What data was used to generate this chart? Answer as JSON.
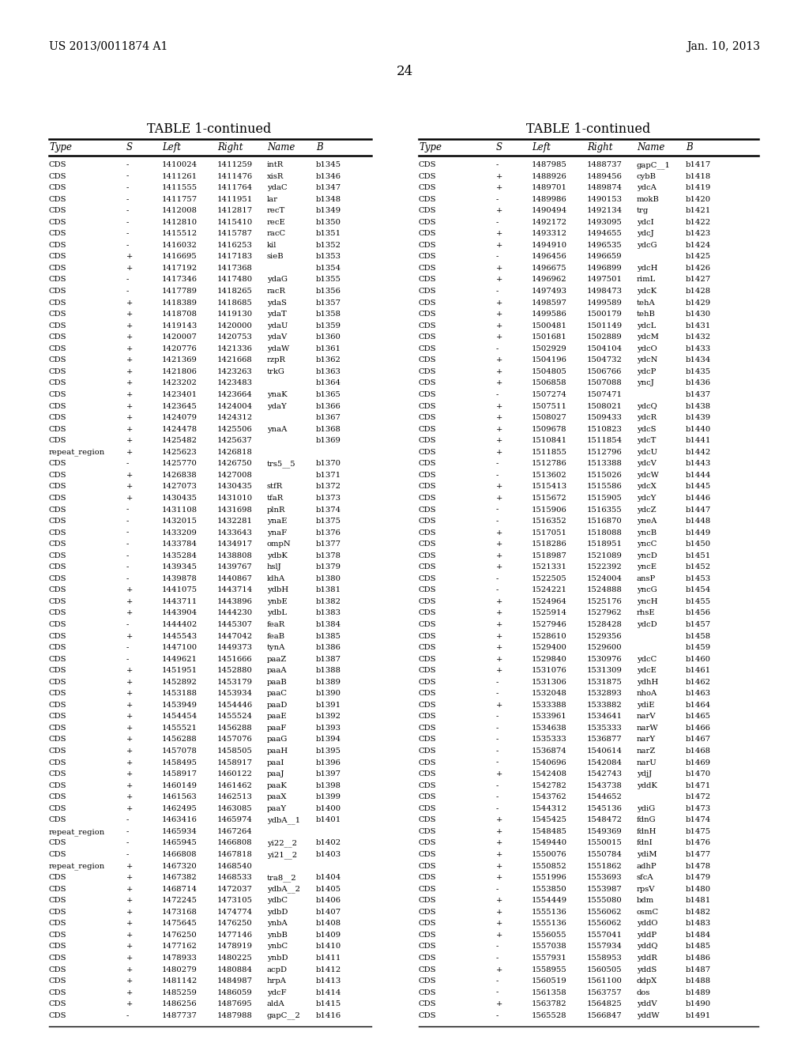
{
  "header_left": "US 2013/0011874 A1",
  "header_right": "Jan. 10, 2013",
  "page_number": "24",
  "table_title": "TABLE 1-continued",
  "columns": [
    "Type",
    "S",
    "Left",
    "Right",
    "Name",
    "B"
  ],
  "left_table": [
    [
      "CDS",
      "-",
      "1410024",
      "1411259",
      "intR",
      "b1345"
    ],
    [
      "CDS",
      "-",
      "1411261",
      "1411476",
      "xisR",
      "b1346"
    ],
    [
      "CDS",
      "-",
      "1411555",
      "1411764",
      "ydaC",
      "b1347"
    ],
    [
      "CDS",
      "-",
      "1411757",
      "1411951",
      "lar",
      "b1348"
    ],
    [
      "CDS",
      "-",
      "1412008",
      "1412817",
      "recT",
      "b1349"
    ],
    [
      "CDS",
      "-",
      "1412810",
      "1415410",
      "recE",
      "b1350"
    ],
    [
      "CDS",
      "-",
      "1415512",
      "1415787",
      "racC",
      "b1351"
    ],
    [
      "CDS",
      "-",
      "1416032",
      "1416253",
      "kil",
      "b1352"
    ],
    [
      "CDS",
      "+",
      "1416695",
      "1417183",
      "sieB",
      "b1353"
    ],
    [
      "CDS",
      "+",
      "1417192",
      "1417368",
      "",
      "b1354"
    ],
    [
      "CDS",
      "-",
      "1417346",
      "1417480",
      "ydaG",
      "b1355"
    ],
    [
      "CDS",
      "-",
      "1417789",
      "1418265",
      "racR",
      "b1356"
    ],
    [
      "CDS",
      "+",
      "1418389",
      "1418685",
      "ydaS",
      "b1357"
    ],
    [
      "CDS",
      "+",
      "1418708",
      "1419130",
      "ydaT",
      "b1358"
    ],
    [
      "CDS",
      "+",
      "1419143",
      "1420000",
      "ydaU",
      "b1359"
    ],
    [
      "CDS",
      "+",
      "1420007",
      "1420753",
      "ydaV",
      "b1360"
    ],
    [
      "CDS",
      "+",
      "1420776",
      "1421336",
      "ydaW",
      "b1361"
    ],
    [
      "CDS",
      "+",
      "1421369",
      "1421668",
      "rzpR",
      "b1362"
    ],
    [
      "CDS",
      "+",
      "1421806",
      "1423263",
      "trkG",
      "b1363"
    ],
    [
      "CDS",
      "+",
      "1423202",
      "1423483",
      "",
      "b1364"
    ],
    [
      "CDS",
      "+",
      "1423401",
      "1423664",
      "ynaK",
      "b1365"
    ],
    [
      "CDS",
      "+",
      "1423645",
      "1424004",
      "ydaY",
      "b1366"
    ],
    [
      "CDS",
      "+",
      "1424079",
      "1424312",
      "",
      "b1367"
    ],
    [
      "CDS",
      "+",
      "1424478",
      "1425506",
      "ynaA",
      "b1368"
    ],
    [
      "CDS",
      "+",
      "1425482",
      "1425637",
      "",
      "b1369"
    ],
    [
      "repeat_region",
      "+",
      "1425623",
      "1426818",
      "",
      ""
    ],
    [
      "CDS",
      "-",
      "1425770",
      "1426750",
      "trs5__5",
      "b1370"
    ],
    [
      "CDS",
      "+",
      "1426838",
      "1427008",
      "",
      "b1371"
    ],
    [
      "CDS",
      "+",
      "1427073",
      "1430435",
      "stfR",
      "b1372"
    ],
    [
      "CDS",
      "+",
      "1430435",
      "1431010",
      "tfaR",
      "b1373"
    ],
    [
      "CDS",
      "-",
      "1431108",
      "1431698",
      "plnR",
      "b1374"
    ],
    [
      "CDS",
      "-",
      "1432015",
      "1432281",
      "ynaE",
      "b1375"
    ],
    [
      "CDS",
      "-",
      "1433209",
      "1433643",
      "ynaF",
      "b1376"
    ],
    [
      "CDS",
      "-",
      "1433784",
      "1434917",
      "ompN",
      "b1377"
    ],
    [
      "CDS",
      "-",
      "1435284",
      "1438808",
      "ydbK",
      "b1378"
    ],
    [
      "CDS",
      "-",
      "1439345",
      "1439767",
      "hslJ",
      "b1379"
    ],
    [
      "CDS",
      "-",
      "1439878",
      "1440867",
      "ldhA",
      "b1380"
    ],
    [
      "CDS",
      "+",
      "1441075",
      "1443714",
      "ydbH",
      "b1381"
    ],
    [
      "CDS",
      "+",
      "1443711",
      "1443896",
      "ynbE",
      "b1382"
    ],
    [
      "CDS",
      "+",
      "1443904",
      "1444230",
      "ydbL",
      "b1383"
    ],
    [
      "CDS",
      "-",
      "1444402",
      "1445307",
      "feaR",
      "b1384"
    ],
    [
      "CDS",
      "+",
      "1445543",
      "1447042",
      "feaB",
      "b1385"
    ],
    [
      "CDS",
      "-",
      "1447100",
      "1449373",
      "tynA",
      "b1386"
    ],
    [
      "CDS",
      "-",
      "1449621",
      "1451666",
      "paaZ",
      "b1387"
    ],
    [
      "CDS",
      "+",
      "1451951",
      "1452880",
      "paaA",
      "b1388"
    ],
    [
      "CDS",
      "+",
      "1452892",
      "1453179",
      "paaB",
      "b1389"
    ],
    [
      "CDS",
      "+",
      "1453188",
      "1453934",
      "paaC",
      "b1390"
    ],
    [
      "CDS",
      "+",
      "1453949",
      "1454446",
      "paaD",
      "b1391"
    ],
    [
      "CDS",
      "+",
      "1454454",
      "1455524",
      "paaE",
      "b1392"
    ],
    [
      "CDS",
      "+",
      "1455521",
      "1456288",
      "paaF",
      "b1393"
    ],
    [
      "CDS",
      "+",
      "1456288",
      "1457076",
      "paaG",
      "b1394"
    ],
    [
      "CDS",
      "+",
      "1457078",
      "1458505",
      "paaH",
      "b1395"
    ],
    [
      "CDS",
      "+",
      "1458495",
      "1458917",
      "paaI",
      "b1396"
    ],
    [
      "CDS",
      "+",
      "1458917",
      "1460122",
      "paaJ",
      "b1397"
    ],
    [
      "CDS",
      "+",
      "1460149",
      "1461462",
      "paaK",
      "b1398"
    ],
    [
      "CDS",
      "+",
      "1461563",
      "1462513",
      "paaX",
      "b1399"
    ],
    [
      "CDS",
      "+",
      "1462495",
      "1463085",
      "paaY",
      "b1400"
    ],
    [
      "CDS",
      "-",
      "1463416",
      "1465974",
      "ydbA__1",
      "b1401"
    ],
    [
      "repeat_region",
      "-",
      "1465934",
      "1467264",
      "",
      ""
    ],
    [
      "CDS",
      "-",
      "1465945",
      "1466808",
      "yi22__2",
      "b1402"
    ],
    [
      "CDS",
      "-",
      "1466808",
      "1467818",
      "yi21__2",
      "b1403"
    ],
    [
      "repeat_region",
      "+",
      "1467320",
      "1468540",
      "",
      ""
    ],
    [
      "CDS",
      "+",
      "1467382",
      "1468533",
      "tra8__2",
      "b1404"
    ],
    [
      "CDS",
      "+",
      "1468714",
      "1472037",
      "ydbA__2",
      "b1405"
    ],
    [
      "CDS",
      "+",
      "1472245",
      "1473105",
      "ydbC",
      "b1406"
    ],
    [
      "CDS",
      "+",
      "1473168",
      "1474774",
      "ydbD",
      "b1407"
    ],
    [
      "CDS",
      "+",
      "1475645",
      "1476250",
      "ynbA",
      "b1408"
    ],
    [
      "CDS",
      "+",
      "1476250",
      "1477146",
      "ynbB",
      "b1409"
    ],
    [
      "CDS",
      "+",
      "1477162",
      "1478919",
      "ynbC",
      "b1410"
    ],
    [
      "CDS",
      "+",
      "1478933",
      "1480225",
      "ynbD",
      "b1411"
    ],
    [
      "CDS",
      "+",
      "1480279",
      "1480884",
      "acpD",
      "b1412"
    ],
    [
      "CDS",
      "+",
      "1481142",
      "1484987",
      "hrpA",
      "b1413"
    ],
    [
      "CDS",
      "+",
      "1485259",
      "1486059",
      "ydcF",
      "b1414"
    ],
    [
      "CDS",
      "+",
      "1486256",
      "1487695",
      "aldA",
      "b1415"
    ],
    [
      "CDS",
      "-",
      "1487737",
      "1487988",
      "gapC__2",
      "b1416"
    ]
  ],
  "right_table": [
    [
      "CDS",
      "-",
      "1487985",
      "1488737",
      "gapC__1",
      "b1417"
    ],
    [
      "CDS",
      "+",
      "1488926",
      "1489456",
      "cybB",
      "b1418"
    ],
    [
      "CDS",
      "+",
      "1489701",
      "1489874",
      "ydcA",
      "b1419"
    ],
    [
      "CDS",
      "-",
      "1489986",
      "1490153",
      "mokB",
      "b1420"
    ],
    [
      "CDS",
      "+",
      "1490494",
      "1492134",
      "trg",
      "b1421"
    ],
    [
      "CDS",
      "-",
      "1492172",
      "1493095",
      "ydcI",
      "b1422"
    ],
    [
      "CDS",
      "+",
      "1493312",
      "1494655",
      "ydcJ",
      "b1423"
    ],
    [
      "CDS",
      "+",
      "1494910",
      "1496535",
      "ydcG",
      "b1424"
    ],
    [
      "CDS",
      "-",
      "1496456",
      "1496659",
      "",
      "b1425"
    ],
    [
      "CDS",
      "+",
      "1496675",
      "1496899",
      "ydcH",
      "b1426"
    ],
    [
      "CDS",
      "+",
      "1496962",
      "1497501",
      "rimL",
      "b1427"
    ],
    [
      "CDS",
      "-",
      "1497493",
      "1498473",
      "ydcK",
      "b1428"
    ],
    [
      "CDS",
      "+",
      "1498597",
      "1499589",
      "tehA",
      "b1429"
    ],
    [
      "CDS",
      "+",
      "1499586",
      "1500179",
      "tehB",
      "b1430"
    ],
    [
      "CDS",
      "+",
      "1500481",
      "1501149",
      "ydcL",
      "b1431"
    ],
    [
      "CDS",
      "+",
      "1501681",
      "1502889",
      "ydcM",
      "b1432"
    ],
    [
      "CDS",
      "-",
      "1502929",
      "1504104",
      "ydcO",
      "b1433"
    ],
    [
      "CDS",
      "+",
      "1504196",
      "1504732",
      "ydcN",
      "b1434"
    ],
    [
      "CDS",
      "+",
      "1504805",
      "1506766",
      "ydcP",
      "b1435"
    ],
    [
      "CDS",
      "+",
      "1506858",
      "1507088",
      "yncJ",
      "b1436"
    ],
    [
      "CDS",
      "-",
      "1507274",
      "1507471",
      "",
      "b1437"
    ],
    [
      "CDS",
      "+",
      "1507511",
      "1508021",
      "ydcQ",
      "b1438"
    ],
    [
      "CDS",
      "+",
      "1508027",
      "1509433",
      "ydcR",
      "b1439"
    ],
    [
      "CDS",
      "+",
      "1509678",
      "1510823",
      "ydcS",
      "b1440"
    ],
    [
      "CDS",
      "+",
      "1510841",
      "1511854",
      "ydcT",
      "b1441"
    ],
    [
      "CDS",
      "+",
      "1511855",
      "1512796",
      "ydcU",
      "b1442"
    ],
    [
      "CDS",
      "-",
      "1512786",
      "1513388",
      "ydcV",
      "b1443"
    ],
    [
      "CDS",
      "-",
      "1513602",
      "1515026",
      "ydcW",
      "b1444"
    ],
    [
      "CDS",
      "+",
      "1515413",
      "1515586",
      "ydcX",
      "b1445"
    ],
    [
      "CDS",
      "+",
      "1515672",
      "1515905",
      "ydcY",
      "b1446"
    ],
    [
      "CDS",
      "-",
      "1515906",
      "1516355",
      "ydcZ",
      "b1447"
    ],
    [
      "CDS",
      "-",
      "1516352",
      "1516870",
      "yneA",
      "b1448"
    ],
    [
      "CDS",
      "+",
      "1517051",
      "1518088",
      "yncB",
      "b1449"
    ],
    [
      "CDS",
      "+",
      "1518286",
      "1518951",
      "yncC",
      "b1450"
    ],
    [
      "CDS",
      "+",
      "1518987",
      "1521089",
      "yncD",
      "b1451"
    ],
    [
      "CDS",
      "+",
      "1521331",
      "1522392",
      "yncE",
      "b1452"
    ],
    [
      "CDS",
      "-",
      "1522505",
      "1524004",
      "ansP",
      "b1453"
    ],
    [
      "CDS",
      "-",
      "1524221",
      "1524888",
      "yncG",
      "b1454"
    ],
    [
      "CDS",
      "+",
      "1524964",
      "1525176",
      "yncH",
      "b1455"
    ],
    [
      "CDS",
      "+",
      "1525914",
      "1527962",
      "rhsE",
      "b1456"
    ],
    [
      "CDS",
      "+",
      "1527946",
      "1528428",
      "ydcD",
      "b1457"
    ],
    [
      "CDS",
      "+",
      "1528610",
      "1529356",
      "",
      "b1458"
    ],
    [
      "CDS",
      "+",
      "1529400",
      "1529600",
      "",
      "b1459"
    ],
    [
      "CDS",
      "+",
      "1529840",
      "1530976",
      "ydcC",
      "b1460"
    ],
    [
      "CDS",
      "+",
      "1531076",
      "1531309",
      "ydcE",
      "b1461"
    ],
    [
      "CDS",
      "-",
      "1531306",
      "1531875",
      "ydhH",
      "b1462"
    ],
    [
      "CDS",
      "-",
      "1532048",
      "1532893",
      "nhoA",
      "b1463"
    ],
    [
      "CDS",
      "+",
      "1533388",
      "1533882",
      "ydiE",
      "b1464"
    ],
    [
      "CDS",
      "-",
      "1533961",
      "1534641",
      "narV",
      "b1465"
    ],
    [
      "CDS",
      "-",
      "1534638",
      "1535333",
      "narW",
      "b1466"
    ],
    [
      "CDS",
      "-",
      "1535333",
      "1536877",
      "narY",
      "b1467"
    ],
    [
      "CDS",
      "-",
      "1536874",
      "1540614",
      "narZ",
      "b1468"
    ],
    [
      "CDS",
      "-",
      "1540696",
      "1542084",
      "narU",
      "b1469"
    ],
    [
      "CDS",
      "+",
      "1542408",
      "1542743",
      "ydjJ",
      "b1470"
    ],
    [
      "CDS",
      "-",
      "1542782",
      "1543738",
      "yddK",
      "b1471"
    ],
    [
      "CDS",
      "-",
      "1543762",
      "1544652",
      "",
      "b1472"
    ],
    [
      "CDS",
      "-",
      "1544312",
      "1545136",
      "ydiG",
      "b1473"
    ],
    [
      "CDS",
      "+",
      "1545425",
      "1548472",
      "fdnG",
      "b1474"
    ],
    [
      "CDS",
      "+",
      "1548485",
      "1549369",
      "fdnH",
      "b1475"
    ],
    [
      "CDS",
      "+",
      "1549440",
      "1550015",
      "fdnI",
      "b1476"
    ],
    [
      "CDS",
      "+",
      "1550076",
      "1550784",
      "ydiM",
      "b1477"
    ],
    [
      "CDS",
      "+",
      "1550852",
      "1551862",
      "adhP",
      "b1478"
    ],
    [
      "CDS",
      "+",
      "1551996",
      "1553693",
      "sfcA",
      "b1479"
    ],
    [
      "CDS",
      "-",
      "1553850",
      "1553987",
      "rpsV",
      "b1480"
    ],
    [
      "CDS",
      "+",
      "1554449",
      "1555080",
      "bdm",
      "b1481"
    ],
    [
      "CDS",
      "+",
      "1555136",
      "1556062",
      "osmC",
      "b1482"
    ],
    [
      "CDS",
      "+",
      "1555136",
      "1556062",
      "yddO",
      "b1483"
    ],
    [
      "CDS",
      "+",
      "1556055",
      "1557041",
      "yddP",
      "b1484"
    ],
    [
      "CDS",
      "-",
      "1557038",
      "1557934",
      "yddQ",
      "b1485"
    ],
    [
      "CDS",
      "-",
      "1557931",
      "1558953",
      "yddR",
      "b1486"
    ],
    [
      "CDS",
      "+",
      "1558955",
      "1560505",
      "yddS",
      "b1487"
    ],
    [
      "CDS",
      "-",
      "1560519",
      "1561100",
      "ddpX",
      "b1488"
    ],
    [
      "CDS",
      "-",
      "1561358",
      "1563757",
      "dos",
      "b1489"
    ],
    [
      "CDS",
      "+",
      "1563782",
      "1564825",
      "yddV",
      "b1490"
    ],
    [
      "CDS",
      "-",
      "1565528",
      "1566847",
      "yddW",
      "b1491"
    ]
  ],
  "bg_color": "#ffffff",
  "text_color": "#000000",
  "font_size": 7.2,
  "header_font_size": 10,
  "col_header_font_size": 8.5
}
